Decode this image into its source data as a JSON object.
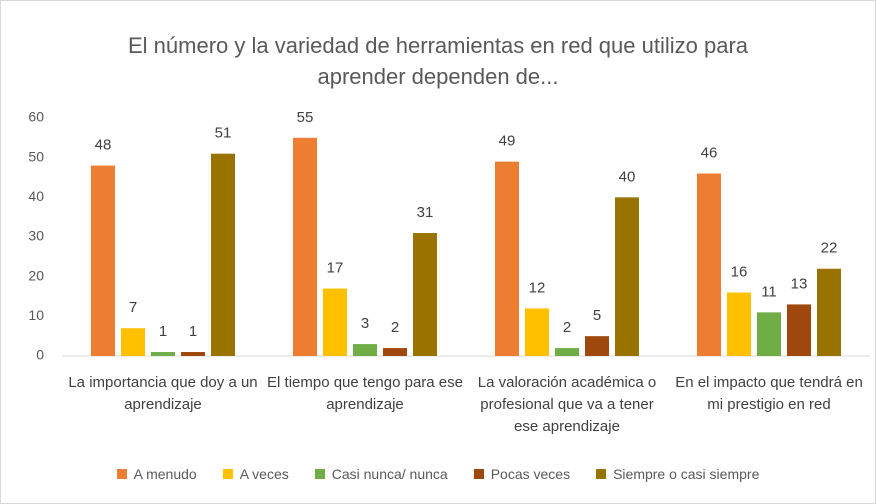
{
  "chart_data": {
    "type": "bar",
    "title": "El número y la variedad de herramientas en red que utilizo para aprender dependen de...",
    "categories": [
      "La importancia que doy a un aprendizaje",
      "El tiempo que tengo para ese aprendizaje",
      "La valoración académica o profesional que va a tener ese aprendizaje",
      "En el impacto que tendrá en mi prestigio en red"
    ],
    "series": [
      {
        "name": "A menudo",
        "color": "#ed7d31",
        "values": [
          48,
          55,
          49,
          46
        ]
      },
      {
        "name": "A veces",
        "color": "#ffc000",
        "values": [
          7,
          17,
          12,
          16
        ]
      },
      {
        "name": "Casi nunca/ nunca",
        "color": "#70ad47",
        "values": [
          1,
          3,
          2,
          11
        ]
      },
      {
        "name": "Pocas veces",
        "color": "#9e480e",
        "values": [
          1,
          2,
          5,
          13
        ]
      },
      {
        "name": "Siempre o casi siempre",
        "color": "#997300",
        "values": [
          51,
          31,
          40,
          22
        ]
      }
    ],
    "ylim": [
      0,
      60
    ],
    "yticks": [
      0,
      10,
      20,
      30,
      40,
      50,
      60
    ],
    "grid": false,
    "legend": "bottom"
  }
}
